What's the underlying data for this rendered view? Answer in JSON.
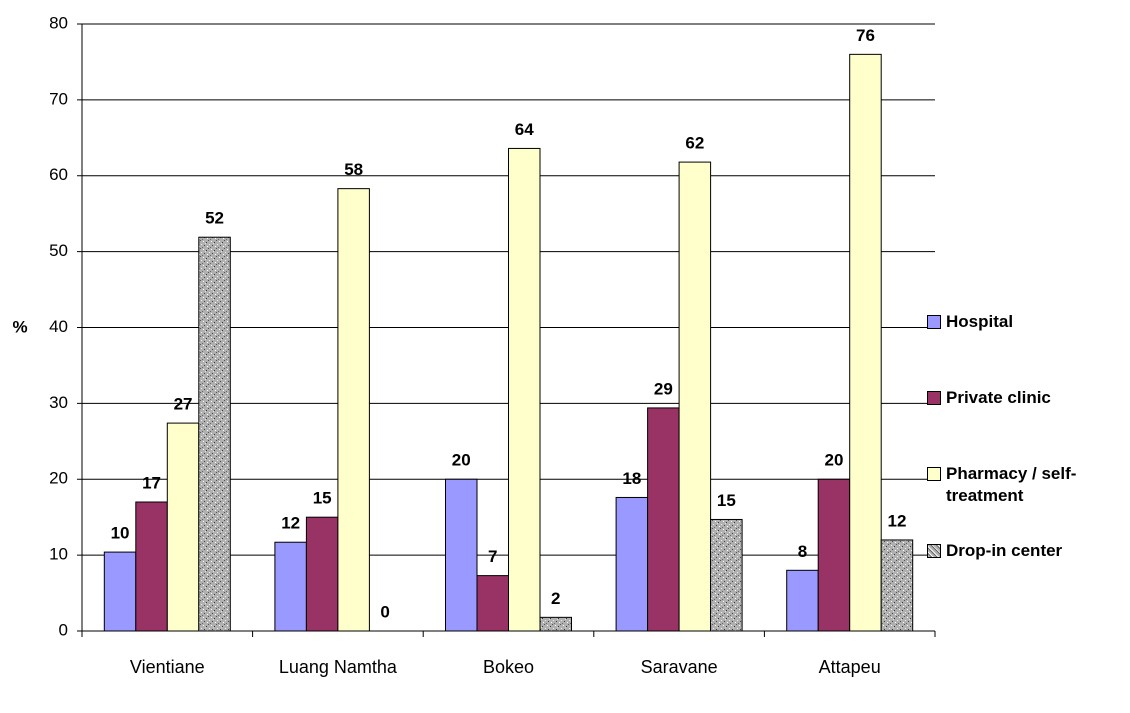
{
  "chart_data": {
    "type": "bar",
    "y_label": "%",
    "categories": [
      "Vientiane",
      "Luang Namtha",
      "Bokeo",
      "Saravane",
      "Attapeu"
    ],
    "series": [
      {
        "name": "Hospital",
        "color": "#9999ff",
        "values": [
          10.4,
          11.7,
          20,
          17.6,
          8
        ],
        "value_labels": [
          "10",
          "12",
          "20",
          "18",
          "8"
        ]
      },
      {
        "name": "Private clinic",
        "color": "#993366",
        "values": [
          17,
          15,
          7.3,
          29.4,
          20
        ],
        "value_labels": [
          "17",
          "15",
          "7",
          "29",
          "20"
        ]
      },
      {
        "name": "Pharmacy / self-treatment",
        "color": "#ffffcc",
        "values": [
          27.4,
          58.3,
          63.6,
          61.8,
          76
        ],
        "value_labels": [
          "27",
          "58",
          "64",
          "62",
          "76"
        ]
      },
      {
        "name": "Drop-in center",
        "color": "#b0b0b0",
        "pattern": "speckle",
        "values": [
          51.9,
          0,
          1.8,
          14.7,
          12
        ],
        "value_labels": [
          "52",
          "0",
          "2",
          "15",
          "12"
        ]
      }
    ],
    "ylim": [
      0,
      80
    ],
    "yticks": [
      0,
      10,
      20,
      30,
      40,
      50,
      60,
      70,
      80
    ],
    "grid": true,
    "legend": "right"
  }
}
